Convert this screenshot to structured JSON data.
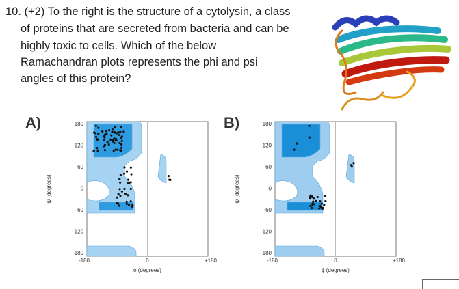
{
  "question": {
    "lines": [
      "10. (+2) To the right is the structure of a cytolysin, a class",
      "of proteins that are secreted from bacteria and can be",
      "highly  toxic  to  cells.  Which  of  the  below",
      "Ramachandran  plots  represents  the  phi  and  psi",
      "angles of this protein?"
    ]
  },
  "plots": [
    {
      "label": "A)",
      "y_ticks": [
        "+180",
        "120",
        "60",
        "0",
        "-60",
        "-120",
        "-180"
      ],
      "x_ticks": [
        "-180",
        "0",
        "+180"
      ],
      "y_axis_label": "ψ (degrees)",
      "x_axis_label": "ϕ (degrees)"
    },
    {
      "label": "B)",
      "y_ticks": [
        "+180",
        "120",
        "60",
        "0",
        "-60",
        "-120",
        "-180"
      ],
      "x_ticks": [
        "-180",
        "0",
        "+180"
      ],
      "y_axis_label": "ψ (degrees)",
      "x_axis_label": "ϕ (degrees)"
    }
  ]
}
